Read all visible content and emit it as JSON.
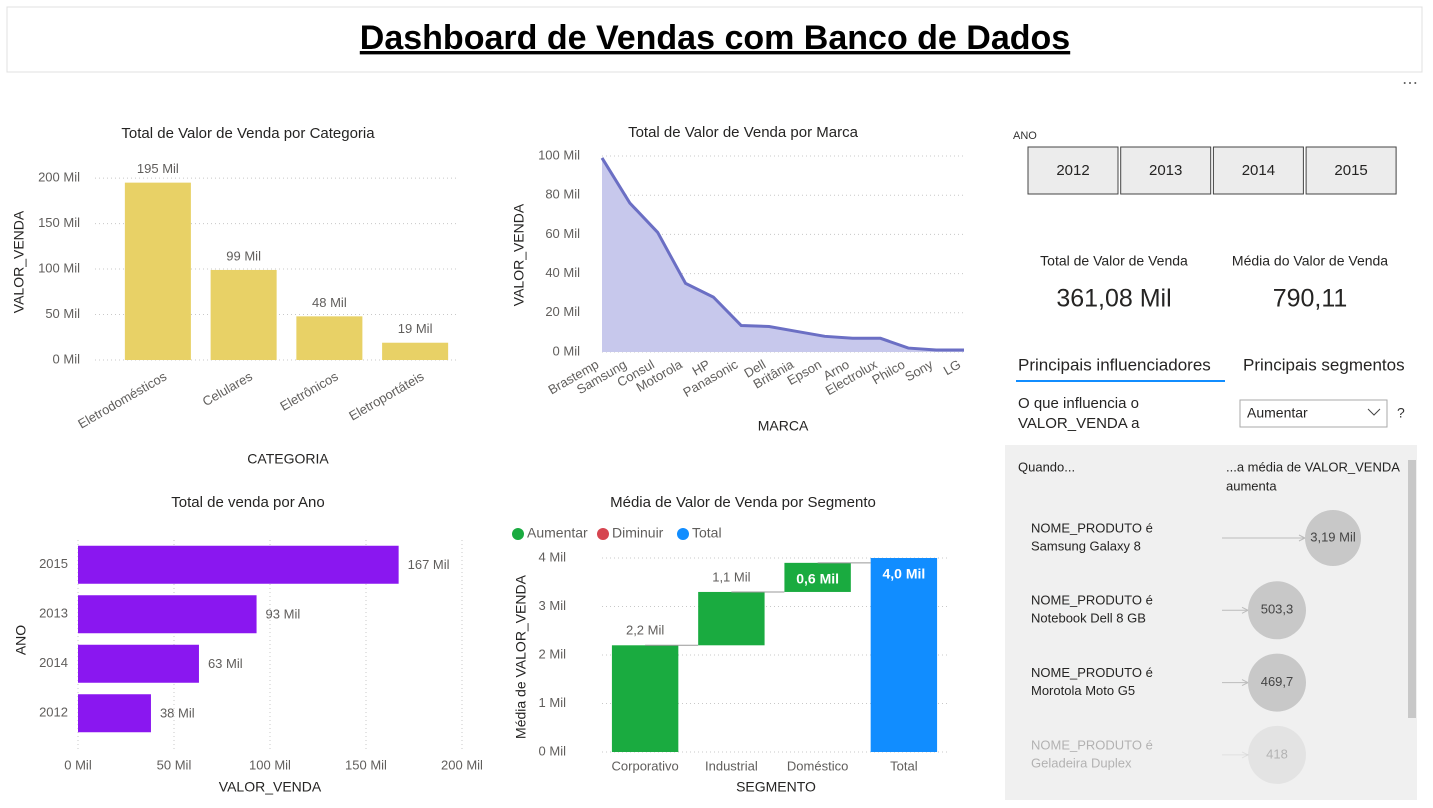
{
  "header": {
    "title": "Dashboard de Vendas com Banco de Dados"
  },
  "chart_data": [
    {
      "type": "bar",
      "title": "Total de Valor de Venda por Categoria",
      "x_label": "CATEGORIA",
      "y_label": "VALOR_VENDA",
      "categories": [
        "Eletrodomésticos",
        "Celulares",
        "Eletrônicos",
        "Eletroportáteis"
      ],
      "values": [
        195,
        99,
        48,
        19
      ],
      "value_labels": [
        "195 Mil",
        "99 Mil",
        "48 Mil",
        "19 Mil"
      ],
      "color": "#e8d166",
      "ylim": [
        0,
        210
      ],
      "yticks": [
        {
          "value": 0,
          "label": "0 Mil"
        },
        {
          "value": 50,
          "label": "50 Mil"
        },
        {
          "value": 100,
          "label": "100 Mil"
        },
        {
          "value": 150,
          "label": "150 Mil"
        },
        {
          "value": 200,
          "label": "200 Mil"
        }
      ],
      "grid": true
    },
    {
      "type": "area",
      "title": "Total de Valor de Venda por Marca",
      "x_label": "MARCA",
      "y_label": "VALOR_VENDA",
      "categories": [
        "Brastemp",
        "Samsung",
        "Consul",
        "Motorola",
        "HP",
        "Panasonic",
        "Dell",
        "Britânia",
        "Epson",
        "Arno",
        "Electrolux",
        "Philco",
        "Sony",
        "LG"
      ],
      "values": [
        99,
        76,
        61,
        35,
        28,
        13.5,
        13,
        10.5,
        8,
        7,
        7,
        2,
        1,
        1
      ],
      "color": "#6b6fc4",
      "fill": "#c7c8ec",
      "ylim": [
        0,
        100
      ],
      "yticks": [
        {
          "value": 0,
          "label": "0 Mil"
        },
        {
          "value": 20,
          "label": "20 Mil"
        },
        {
          "value": 40,
          "label": "40 Mil"
        },
        {
          "value": 60,
          "label": "60 Mil"
        },
        {
          "value": 80,
          "label": "80 Mil"
        },
        {
          "value": 100,
          "label": "100 Mil"
        }
      ],
      "grid": true
    },
    {
      "type": "bar",
      "orientation": "horizontal",
      "title": "Total de venda por Ano",
      "x_label": "VALOR_VENDA",
      "y_label": "ANO",
      "categories": [
        "2015",
        "2013",
        "2014",
        "2012"
      ],
      "values": [
        167,
        93,
        63,
        38
      ],
      "value_labels": [
        "167 Mil",
        "93 Mil",
        "63 Mil",
        "38 Mil"
      ],
      "color": "#8a17f0",
      "xlim": [
        0,
        200
      ],
      "xticks": [
        {
          "value": 0,
          "label": "0 Mil"
        },
        {
          "value": 50,
          "label": "50 Mil"
        },
        {
          "value": 100,
          "label": "100 Mil"
        },
        {
          "value": 150,
          "label": "150 Mil"
        },
        {
          "value": 200,
          "label": "200 Mil"
        }
      ],
      "grid": true
    },
    {
      "type": "waterfall",
      "title": "Média de Valor de Venda por Segmento",
      "x_label": "SEGMENTO",
      "y_label": "Média de VALOR_VENDA",
      "legend": [
        {
          "name": "Aumentar",
          "color": "#1aab40"
        },
        {
          "name": "Diminuir",
          "color": "#d64550"
        },
        {
          "name": "Total",
          "color": "#118dff"
        }
      ],
      "categories": [
        "Corporativo",
        "Industrial",
        "Doméstico",
        "Total"
      ],
      "values": [
        2.2,
        1.1,
        0.6,
        4.0
      ],
      "value_labels": [
        "2,2 Mil",
        "1,1 Mil",
        "0,6 Mil",
        "4,0 Mil"
      ],
      "ylim": [
        0,
        4
      ],
      "yticks": [
        {
          "value": 0,
          "label": "0 Mil"
        },
        {
          "value": 1,
          "label": "1 Mil"
        },
        {
          "value": 2,
          "label": "2 Mil"
        },
        {
          "value": 3,
          "label": "3 Mil"
        },
        {
          "value": 4,
          "label": "4 Mil"
        }
      ],
      "grid": true
    }
  ],
  "slicer": {
    "label": "ANO",
    "options": [
      "2012",
      "2013",
      "2014",
      "2015"
    ]
  },
  "cards": [
    {
      "label": "Total de Valor de Venda",
      "value": "361,08 Mil"
    },
    {
      "label": "Média do Valor de Venda",
      "value": "790,11"
    }
  ],
  "influencers": {
    "tabs": [
      "Principais influenciadores",
      "Principais segmentos"
    ],
    "question": [
      "O que influencia o",
      "VALOR_VENDA a"
    ],
    "dropdown": "Aumentar",
    "help": "?",
    "when": "Quando...",
    "result": [
      "...a média de VALOR_VENDA",
      "aumenta"
    ],
    "items": [
      {
        "field": "NOME_PRODUTO é",
        "value": "Samsung Galaxy 8",
        "impact": "3,19 Mil"
      },
      {
        "field": "NOME_PRODUTO é",
        "value": "Notebook Dell 8 GB",
        "impact": "503,3"
      },
      {
        "field": "NOME_PRODUTO é",
        "value": "Morotola Moto G5",
        "impact": "469,7"
      },
      {
        "field": "NOME_PRODUTO é",
        "value": "Geladeira Duplex",
        "impact": "418"
      }
    ]
  }
}
